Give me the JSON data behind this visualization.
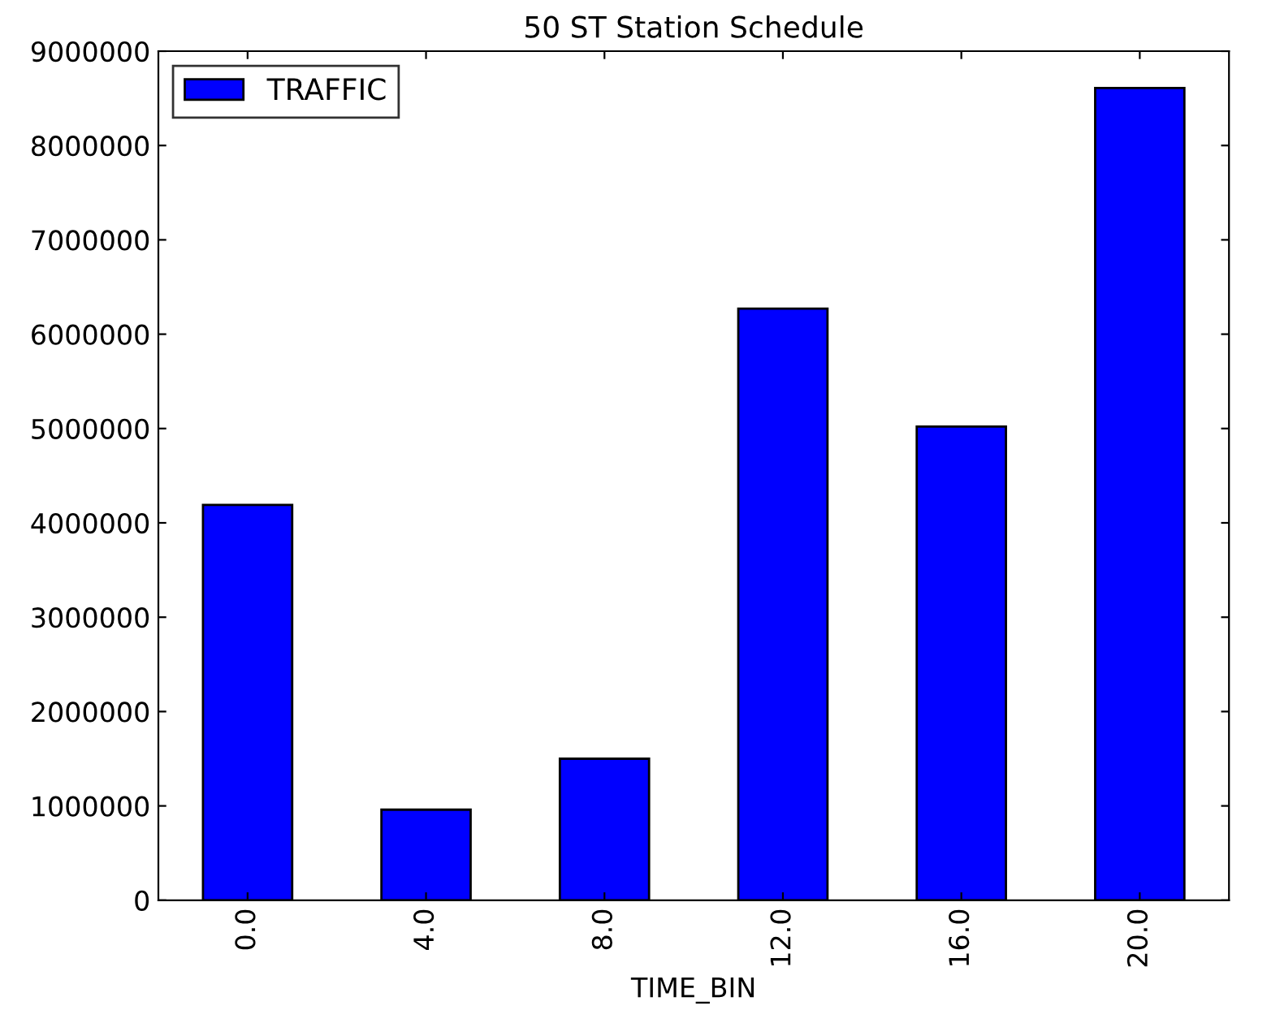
{
  "chart_data": {
    "type": "bar",
    "title": "50 ST Station Schedule",
    "xlabel": "TIME_BIN",
    "categories": [
      "0.0",
      "4.0",
      "8.0",
      "12.0",
      "16.0",
      "20.0"
    ],
    "series": [
      {
        "name": "TRAFFIC",
        "color": "#0000ff",
        "values": [
          4190000,
          960000,
          1500000,
          6270000,
          5020000,
          8610000
        ]
      }
    ],
    "ylim": [
      0,
      9000000
    ],
    "yticks": [
      0,
      1000000,
      2000000,
      3000000,
      4000000,
      5000000,
      6000000,
      7000000,
      8000000,
      9000000
    ],
    "grid": false,
    "legend": "upper left"
  }
}
